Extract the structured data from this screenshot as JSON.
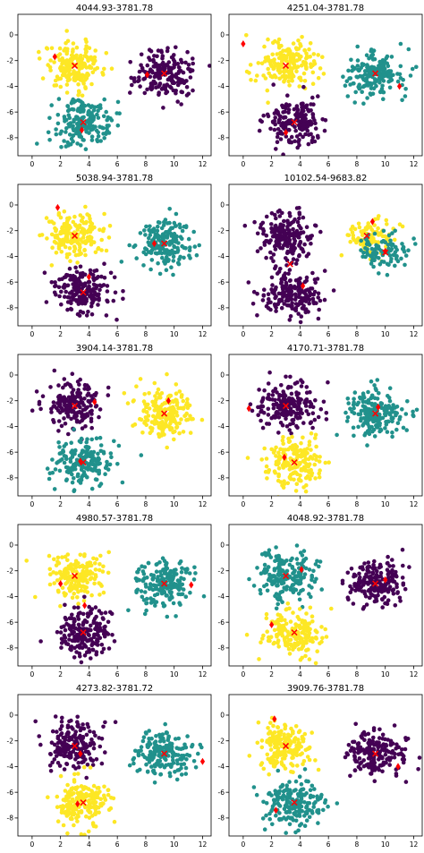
{
  "figure": {
    "colors": {
      "purple": "#440154",
      "teal": "#21918c",
      "yellow": "#fde725",
      "marker": "#ff0000"
    },
    "xticks": [
      "0",
      "2",
      "4",
      "6",
      "8",
      "10",
      "12"
    ],
    "yticks": [
      "0",
      "-2",
      "-4",
      "-6",
      "-8"
    ]
  },
  "chart_data": [
    {
      "type": "scatter",
      "title": "4044.93-3781.78",
      "xlim": [
        -1,
        12.6
      ],
      "ylim": [
        -9.4,
        1.6
      ],
      "grid": false,
      "clusters": [
        {
          "color": "yellow",
          "center": [
            3.0,
            -2.4
          ],
          "spread": [
            1.0,
            0.9
          ],
          "n": 190
        },
        {
          "color": "purple",
          "center": [
            9.3,
            -3.0
          ],
          "spread": [
            1.0,
            0.9
          ],
          "n": 190
        },
        {
          "color": "teal",
          "center": [
            3.6,
            -6.8
          ],
          "spread": [
            1.0,
            0.9
          ],
          "n": 190
        }
      ],
      "centroids": [
        [
          3.0,
          -2.4
        ],
        [
          9.3,
          -3.0
        ],
        [
          3.6,
          -6.8
        ]
      ],
      "initial_points": [
        [
          1.6,
          -1.7
        ],
        [
          8.1,
          -3.1
        ],
        [
          3.5,
          -7.4
        ]
      ]
    },
    {
      "type": "scatter",
      "title": "4251.04-3781.78",
      "xlim": [
        -1,
        12.6
      ],
      "ylim": [
        -9.4,
        1.6
      ],
      "grid": false,
      "clusters": [
        {
          "color": "yellow",
          "center": [
            3.0,
            -2.4
          ],
          "spread": [
            1.0,
            0.9
          ],
          "n": 190
        },
        {
          "color": "teal",
          "center": [
            9.3,
            -3.0
          ],
          "spread": [
            1.0,
            0.9
          ],
          "n": 190
        },
        {
          "color": "purple",
          "center": [
            3.6,
            -6.8
          ],
          "spread": [
            1.0,
            0.9
          ],
          "n": 190
        }
      ],
      "centroids": [
        [
          3.0,
          -2.4
        ],
        [
          9.3,
          -3.0
        ],
        [
          3.6,
          -6.8
        ]
      ],
      "initial_points": [
        [
          0.0,
          -0.7
        ],
        [
          11.0,
          -4.0
        ],
        [
          3.0,
          -7.6
        ]
      ]
    },
    {
      "type": "scatter",
      "title": "5038.94-3781.78",
      "xlim": [
        -1,
        12.6
      ],
      "ylim": [
        -9.4,
        1.6
      ],
      "grid": false,
      "clusters": [
        {
          "color": "yellow",
          "center": [
            3.0,
            -2.4
          ],
          "spread": [
            1.0,
            0.9
          ],
          "n": 190
        },
        {
          "color": "teal",
          "center": [
            9.3,
            -3.0
          ],
          "spread": [
            1.0,
            0.9
          ],
          "n": 190
        },
        {
          "color": "purple",
          "center": [
            3.6,
            -6.8
          ],
          "spread": [
            1.0,
            0.9
          ],
          "n": 190
        }
      ],
      "centroids": [
        [
          3.0,
          -2.4
        ],
        [
          9.3,
          -3.0
        ],
        [
          3.6,
          -6.8
        ]
      ],
      "initial_points": [
        [
          1.8,
          -0.2
        ],
        [
          8.6,
          -3.0
        ],
        [
          4.0,
          -5.6
        ]
      ]
    },
    {
      "type": "scatter",
      "title": "10102.54-9683.82",
      "xlim": [
        -1,
        12.6
      ],
      "ylim": [
        -9.4,
        1.6
      ],
      "grid": false,
      "clusters": [
        {
          "color": "purple",
          "center": [
            3.0,
            -2.4
          ],
          "spread": [
            1.0,
            0.9
          ],
          "n": 190
        },
        {
          "color": "purple",
          "center": [
            3.6,
            -6.8
          ],
          "spread": [
            1.0,
            0.9
          ],
          "n": 190
        },
        {
          "color": "yellow",
          "center": [
            9.0,
            -2.4
          ],
          "spread": [
            0.9,
            0.7
          ],
          "n": 95
        },
        {
          "color": "teal",
          "center": [
            9.8,
            -3.6
          ],
          "spread": [
            0.9,
            0.7
          ],
          "n": 95
        }
      ],
      "centroids": [
        [
          3.3,
          -4.6
        ],
        [
          8.7,
          -2.4
        ],
        [
          10.0,
          -3.7
        ]
      ],
      "initial_points": [
        [
          9.1,
          -1.3
        ],
        [
          10.0,
          -3.6
        ],
        [
          4.2,
          -6.3
        ]
      ]
    },
    {
      "type": "scatter",
      "title": "3904.14-3781.78",
      "xlim": [
        -1,
        12.6
      ],
      "ylim": [
        -9.4,
        1.6
      ],
      "grid": false,
      "clusters": [
        {
          "color": "purple",
          "center": [
            3.0,
            -2.4
          ],
          "spread": [
            1.0,
            0.9
          ],
          "n": 190
        },
        {
          "color": "yellow",
          "center": [
            9.3,
            -3.0
          ],
          "spread": [
            1.0,
            0.9
          ],
          "n": 190
        },
        {
          "color": "teal",
          "center": [
            3.6,
            -6.8
          ],
          "spread": [
            1.0,
            0.9
          ],
          "n": 190
        }
      ],
      "centroids": [
        [
          3.0,
          -2.4
        ],
        [
          9.3,
          -3.0
        ],
        [
          3.6,
          -6.8
        ]
      ],
      "initial_points": [
        [
          4.4,
          -2.1
        ],
        [
          9.6,
          -2.0
        ],
        [
          3.4,
          -6.7
        ]
      ]
    },
    {
      "type": "scatter",
      "title": "4170.71-3781.78",
      "xlim": [
        -1,
        12.6
      ],
      "ylim": [
        -9.4,
        1.6
      ],
      "grid": false,
      "clusters": [
        {
          "color": "purple",
          "center": [
            3.0,
            -2.4
          ],
          "spread": [
            1.0,
            0.9
          ],
          "n": 190
        },
        {
          "color": "teal",
          "center": [
            9.3,
            -3.0
          ],
          "spread": [
            1.0,
            0.9
          ],
          "n": 190
        },
        {
          "color": "yellow",
          "center": [
            3.6,
            -6.8
          ],
          "spread": [
            1.0,
            0.9
          ],
          "n": 190
        }
      ],
      "centroids": [
        [
          3.0,
          -2.4
        ],
        [
          9.3,
          -3.0
        ],
        [
          3.6,
          -6.8
        ]
      ],
      "initial_points": [
        [
          0.4,
          -2.6
        ],
        [
          9.5,
          -2.5
        ],
        [
          2.9,
          -6.4
        ]
      ]
    },
    {
      "type": "scatter",
      "title": "4980.57-3781.78",
      "xlim": [
        -1,
        12.6
      ],
      "ylim": [
        -9.4,
        1.6
      ],
      "grid": false,
      "clusters": [
        {
          "color": "yellow",
          "center": [
            3.0,
            -2.4
          ],
          "spread": [
            1.0,
            0.9
          ],
          "n": 190
        },
        {
          "color": "teal",
          "center": [
            9.3,
            -3.0
          ],
          "spread": [
            1.0,
            0.9
          ],
          "n": 190
        },
        {
          "color": "purple",
          "center": [
            3.6,
            -6.8
          ],
          "spread": [
            1.0,
            0.9
          ],
          "n": 190
        }
      ],
      "centroids": [
        [
          3.0,
          -2.4
        ],
        [
          9.3,
          -3.0
        ],
        [
          3.6,
          -6.8
        ]
      ],
      "initial_points": [
        [
          2.0,
          -3.0
        ],
        [
          11.2,
          -3.1
        ],
        [
          3.7,
          -4.7
        ]
      ]
    },
    {
      "type": "scatter",
      "title": "4048.92-3781.78",
      "xlim": [
        -1,
        12.6
      ],
      "ylim": [
        -9.4,
        1.6
      ],
      "grid": false,
      "clusters": [
        {
          "color": "teal",
          "center": [
            3.0,
            -2.4
          ],
          "spread": [
            1.0,
            0.9
          ],
          "n": 190
        },
        {
          "color": "purple",
          "center": [
            9.3,
            -3.0
          ],
          "spread": [
            1.0,
            0.9
          ],
          "n": 190
        },
        {
          "color": "yellow",
          "center": [
            3.6,
            -6.8
          ],
          "spread": [
            1.0,
            0.9
          ],
          "n": 190
        }
      ],
      "centroids": [
        [
          3.0,
          -2.4
        ],
        [
          9.3,
          -3.0
        ],
        [
          3.6,
          -6.8
        ]
      ],
      "initial_points": [
        [
          4.1,
          -1.9
        ],
        [
          10.0,
          -2.7
        ],
        [
          2.0,
          -6.2
        ]
      ]
    },
    {
      "type": "scatter",
      "title": "4273.82-3781.72",
      "xlim": [
        -1,
        12.6
      ],
      "ylim": [
        -9.4,
        1.6
      ],
      "grid": false,
      "clusters": [
        {
          "color": "purple",
          "center": [
            3.0,
            -2.4
          ],
          "spread": [
            1.0,
            0.9
          ],
          "n": 190
        },
        {
          "color": "teal",
          "center": [
            9.3,
            -3.0
          ],
          "spread": [
            1.0,
            0.9
          ],
          "n": 190
        },
        {
          "color": "yellow",
          "center": [
            3.6,
            -6.8
          ],
          "spread": [
            1.0,
            0.9
          ],
          "n": 190
        }
      ],
      "centroids": [
        [
          3.0,
          -2.4
        ],
        [
          9.3,
          -3.0
        ],
        [
          3.6,
          -6.8
        ]
      ],
      "initial_points": [
        [
          3.4,
          -3.0
        ],
        [
          12.0,
          -3.6
        ],
        [
          3.2,
          -6.9
        ]
      ]
    },
    {
      "type": "scatter",
      "title": "3909.76-3781.78",
      "xlim": [
        -1,
        12.6
      ],
      "ylim": [
        -9.4,
        1.6
      ],
      "grid": false,
      "clusters": [
        {
          "color": "yellow",
          "center": [
            3.0,
            -2.4
          ],
          "spread": [
            1.0,
            0.9
          ],
          "n": 190
        },
        {
          "color": "purple",
          "center": [
            9.3,
            -3.0
          ],
          "spread": [
            1.0,
            0.9
          ],
          "n": 190
        },
        {
          "color": "teal",
          "center": [
            3.6,
            -6.8
          ],
          "spread": [
            1.0,
            0.9
          ],
          "n": 190
        }
      ],
      "centroids": [
        [
          3.0,
          -2.4
        ],
        [
          9.3,
          -3.0
        ],
        [
          3.6,
          -6.8
        ]
      ],
      "initial_points": [
        [
          2.2,
          -0.3
        ],
        [
          10.9,
          -4.0
        ],
        [
          2.3,
          -7.4
        ]
      ]
    }
  ]
}
